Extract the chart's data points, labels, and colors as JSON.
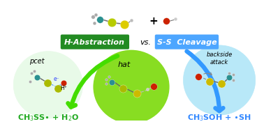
{
  "background_color": "#ffffff",
  "green_box_text": "H-Abstraction",
  "green_box_color": "#228B22",
  "blue_box_text": "S-S  Cleavage",
  "blue_box_color": "#4da6ff",
  "vs_text": "vs.",
  "left_circle_color": "#e8fae8",
  "left_circle_label": "pcet",
  "center_circle_color": "#88dd22",
  "center_circle_label": "hat",
  "right_circle_color": "#b8e8f8",
  "right_circle_label": "backside\nattack",
  "left_product_color": "#22aa22",
  "right_product_color": "#3388ff",
  "green_arrow_color": "#44dd00",
  "blue_arrow_color": "#3399ff",
  "plus_sign": "+"
}
